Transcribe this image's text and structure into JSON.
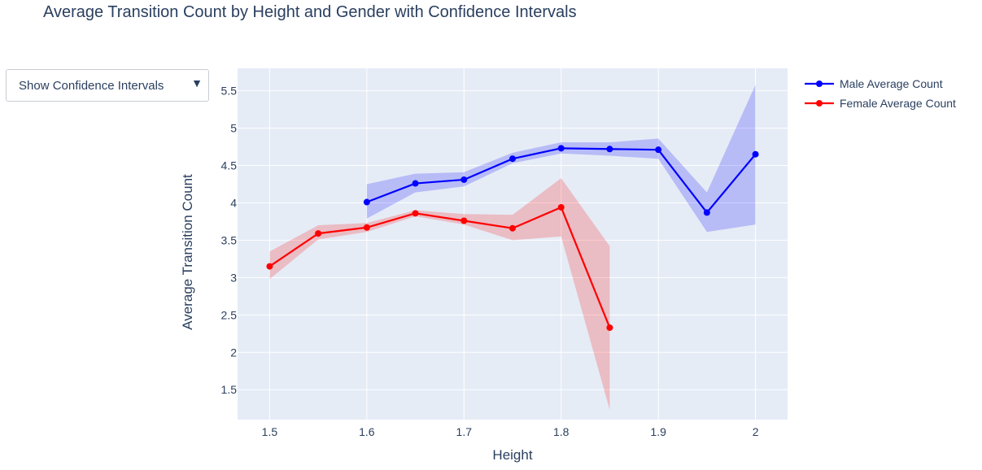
{
  "title": "Average Transition Count by Height and Gender with Confidence Intervals",
  "dropdown": {
    "selected": "Show Confidence Intervals",
    "icon": "triangle-down-icon"
  },
  "colors": {
    "plot_bg": "#e5ecf6",
    "grid": "#ffffff",
    "male": "#0000ff",
    "female": "#ff0000",
    "male_band": "rgba(0,0,255,0.2)",
    "female_band": "rgba(255,0,0,0.2)"
  },
  "chart_data": {
    "type": "line",
    "title": "Average Transition Count by Height and Gender with Confidence Intervals",
    "xlabel": "Height",
    "ylabel": "Average Transition Count",
    "xlim": [
      1.467,
      2.033
    ],
    "ylim": [
      1.1,
      5.8
    ],
    "x_ticks": [
      1.5,
      1.6,
      1.7,
      1.8,
      1.9,
      2.0
    ],
    "x_tick_labels": [
      "1.5",
      "1.6",
      "1.7",
      "1.8",
      "1.9",
      "2"
    ],
    "y_ticks": [
      1.5,
      2,
      2.5,
      3,
      3.5,
      4,
      4.5,
      5,
      5.5
    ],
    "y_tick_labels": [
      "1.5",
      "2",
      "2.5",
      "3",
      "3.5",
      "4",
      "4.5",
      "5",
      "5.5"
    ],
    "grid": true,
    "legend_position": "top-right",
    "series": [
      {
        "name": "Male Average Count",
        "color": "#0000ff",
        "x": [
          1.6,
          1.65,
          1.7,
          1.75,
          1.8,
          1.85,
          1.9,
          1.95,
          2.0
        ],
        "y": [
          4.01,
          4.26,
          4.31,
          4.59,
          4.73,
          4.72,
          4.71,
          3.87,
          4.65
        ],
        "ci_lower": [
          3.79,
          4.14,
          4.22,
          4.53,
          4.66,
          4.63,
          4.59,
          3.61,
          3.71
        ],
        "ci_upper": [
          4.25,
          4.39,
          4.41,
          4.67,
          4.81,
          4.81,
          4.86,
          4.14,
          5.58
        ]
      },
      {
        "name": "Female Average Count",
        "color": "#ff0000",
        "x": [
          1.5,
          1.55,
          1.6,
          1.65,
          1.7,
          1.75,
          1.8,
          1.85
        ],
        "y": [
          3.15,
          3.59,
          3.67,
          3.86,
          3.76,
          3.66,
          3.94,
          2.33
        ],
        "ci_lower": [
          2.98,
          3.51,
          3.61,
          3.82,
          3.71,
          3.5,
          3.55,
          1.23
        ],
        "ci_upper": [
          3.35,
          3.7,
          3.73,
          3.9,
          3.85,
          3.84,
          4.33,
          3.42
        ]
      }
    ]
  }
}
